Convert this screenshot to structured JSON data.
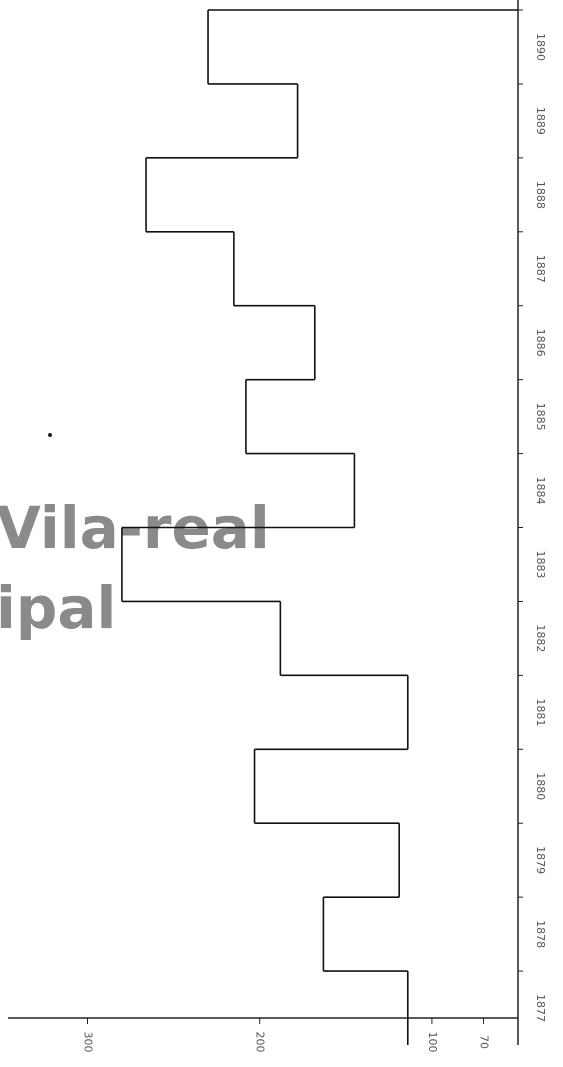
{
  "chart_data": {
    "type": "step",
    "categories": [
      "1877",
      "1878",
      "1879",
      "1880",
      "1881",
      "1882",
      "1883",
      "1884",
      "1885",
      "1886",
      "1887",
      "1888",
      "1889",
      "1890"
    ],
    "values": [
      114,
      163,
      119,
      203,
      114,
      188,
      280,
      145,
      208,
      168,
      215,
      266,
      178,
      230
    ],
    "color": "#111111",
    "ylim": [
      50,
      345
    ],
    "yticks": [
      300,
      200,
      100,
      70
    ],
    "watermark": [
      "Vila-real",
      "ipal"
    ]
  }
}
